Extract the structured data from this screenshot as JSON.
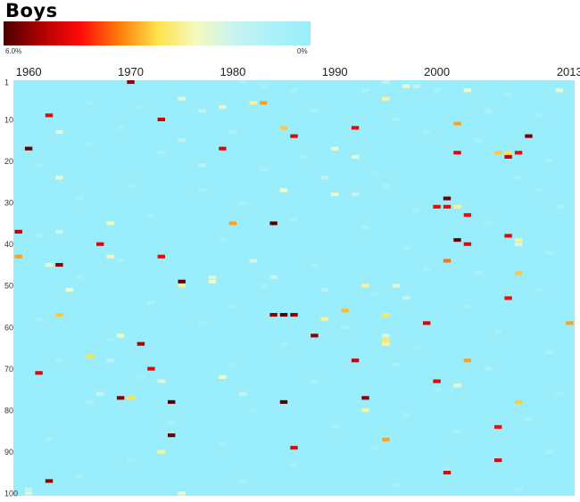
{
  "chart_data": {
    "type": "heatmap",
    "title": "Boys",
    "legend": {
      "min_label": "6.0%",
      "max_label": "0%",
      "colors": [
        "#4a0000",
        "#b30000",
        "#ff0a0a",
        "#ff7f0a",
        "#ffe24a",
        "#f4fac0",
        "#c9f3f0",
        "#aaf1fa",
        "#9aeefc"
      ]
    },
    "x_ticks": [
      "1960",
      "1970",
      "1980",
      "1990",
      "2000",
      "2013"
    ],
    "y_ticks": [
      "1",
      "10",
      "20",
      "30",
      "40",
      "50",
      "60",
      "70",
      "80",
      "90",
      "100"
    ],
    "x_range": [
      1959,
      2013
    ],
    "y_range": [
      1,
      100
    ],
    "background_color": "#9aeefc",
    "cells": [
      [
        1970,
        1,
        5.5
      ],
      [
        1981,
        1,
        0.8
      ],
      [
        1995,
        1,
        1.2
      ],
      [
        1997,
        2,
        2.0
      ],
      [
        1998,
        2,
        1.5
      ],
      [
        2003,
        3,
        2.2
      ],
      [
        2012,
        3,
        2.0
      ],
      [
        1975,
        5,
        2.0
      ],
      [
        1995,
        5,
        2.5
      ],
      [
        1982,
        6,
        2.5
      ],
      [
        1983,
        6,
        3.5
      ],
      [
        1979,
        7,
        2.0
      ],
      [
        1977,
        8,
        1.3
      ],
      [
        1962,
        9,
        4.8
      ],
      [
        1973,
        10,
        5.0
      ],
      [
        2002,
        11,
        3.5
      ],
      [
        1985,
        12,
        3.2
      ],
      [
        1992,
        12,
        4.7
      ],
      [
        1963,
        13,
        1.8
      ],
      [
        1986,
        14,
        4.8
      ],
      [
        2009,
        14,
        5.6
      ],
      [
        1975,
        15,
        1.3
      ],
      [
        1960,
        17,
        5.8
      ],
      [
        1979,
        17,
        4.8
      ],
      [
        1990,
        17,
        2.0
      ],
      [
        2002,
        18,
        4.8
      ],
      [
        2006,
        18,
        3.2
      ],
      [
        2007,
        18,
        3.0
      ],
      [
        2008,
        18,
        4.7
      ],
      [
        2007,
        19,
        5.0
      ],
      [
        1992,
        19,
        2.0
      ],
      [
        1977,
        21,
        1.2
      ],
      [
        1963,
        24,
        2.0
      ],
      [
        1989,
        24,
        1.3
      ],
      [
        1985,
        27,
        2.2
      ],
      [
        1990,
        28,
        2.0
      ],
      [
        1992,
        28,
        1.5
      ],
      [
        2001,
        29,
        5.8
      ],
      [
        2000,
        31,
        4.7
      ],
      [
        2001,
        31,
        4.7
      ],
      [
        2002,
        31,
        2.5
      ],
      [
        2003,
        33,
        4.6
      ],
      [
        1968,
        35,
        2.2
      ],
      [
        1980,
        35,
        3.5
      ],
      [
        1984,
        35,
        5.9
      ],
      [
        1959,
        37,
        5.2
      ],
      [
        1963,
        37,
        1.6
      ],
      [
        2007,
        38,
        4.8
      ],
      [
        2002,
        39,
        5.8
      ],
      [
        2008,
        39,
        2.5
      ],
      [
        2008,
        40,
        1.8
      ],
      [
        1967,
        40,
        4.8
      ],
      [
        2003,
        40,
        4.8
      ],
      [
        1959,
        43,
        3.5
      ],
      [
        1968,
        43,
        2.3
      ],
      [
        1973,
        43,
        4.7
      ],
      [
        2001,
        44,
        3.8
      ],
      [
        1962,
        45,
        2.0
      ],
      [
        1963,
        45,
        5.5
      ],
      [
        1982,
        44,
        1.7
      ],
      [
        2008,
        47,
        3.2
      ],
      [
        1978,
        48,
        1.8
      ],
      [
        1984,
        48,
        1.5
      ],
      [
        1975,
        49,
        5.8
      ],
      [
        1975,
        50,
        2.5
      ],
      [
        1978,
        49,
        2.2
      ],
      [
        1964,
        51,
        2.2
      ],
      [
        1989,
        51,
        1.2
      ],
      [
        1993,
        50,
        2.5
      ],
      [
        1996,
        50,
        1.8
      ],
      [
        1997,
        53,
        1.5
      ],
      [
        2007,
        53,
        4.6
      ],
      [
        1963,
        57,
        3.2
      ],
      [
        1984,
        57,
        5.5
      ],
      [
        1985,
        57,
        5.9
      ],
      [
        1986,
        57,
        5.5
      ],
      [
        1991,
        56,
        3.3
      ],
      [
        1995,
        57,
        2.8
      ],
      [
        1989,
        58,
        2.5
      ],
      [
        1999,
        59,
        4.9
      ],
      [
        2013,
        59,
        3.5
      ],
      [
        1969,
        62,
        2.2
      ],
      [
        1988,
        62,
        5.5
      ],
      [
        1995,
        62,
        1.8
      ],
      [
        1995,
        63,
        2.8
      ],
      [
        1971,
        64,
        5.3
      ],
      [
        1995,
        64,
        2.5
      ],
      [
        1966,
        67,
        3.0
      ],
      [
        1968,
        68,
        1.2
      ],
      [
        1992,
        68,
        5.0
      ],
      [
        2003,
        68,
        3.5
      ],
      [
        1972,
        70,
        4.8
      ],
      [
        1961,
        71,
        4.8
      ],
      [
        1973,
        73,
        1.8
      ],
      [
        1979,
        72,
        2.2
      ],
      [
        2000,
        73,
        4.8
      ],
      [
        2002,
        74,
        2.0
      ],
      [
        1981,
        76,
        1.5
      ],
      [
        1967,
        76,
        1.5
      ],
      [
        1969,
        77,
        5.5
      ],
      [
        1970,
        77,
        3.0
      ],
      [
        1993,
        77,
        5.5
      ],
      [
        1974,
        78,
        5.9
      ],
      [
        1985,
        78,
        5.9
      ],
      [
        2008,
        78,
        3.2
      ],
      [
        1993,
        80,
        2.5
      ],
      [
        2006,
        84,
        4.6
      ],
      [
        1974,
        86,
        5.8
      ],
      [
        1995,
        87,
        3.5
      ],
      [
        1986,
        89,
        4.8
      ],
      [
        1973,
        90,
        2.5
      ],
      [
        2006,
        92,
        4.8
      ],
      [
        2001,
        95,
        4.8
      ],
      [
        1962,
        97,
        5.5
      ],
      [
        1975,
        100,
        2.0
      ],
      [
        1960,
        99,
        1.3
      ],
      [
        1960,
        100,
        1.7
      ],
      [
        1983,
        2,
        0.6
      ],
      [
        1986,
        3,
        0.7
      ],
      [
        1993,
        3,
        0.8
      ],
      [
        2000,
        3,
        0.7
      ],
      [
        2007,
        4,
        0.6
      ],
      [
        1966,
        6,
        0.6
      ],
      [
        1971,
        7,
        0.5
      ],
      [
        1988,
        8,
        0.7
      ],
      [
        2005,
        8,
        0.8
      ],
      [
        2010,
        9,
        0.6
      ],
      [
        1996,
        10,
        0.7
      ],
      [
        1969,
        12,
        0.6
      ],
      [
        1980,
        13,
        0.8
      ],
      [
        1999,
        13,
        0.5
      ],
      [
        2004,
        15,
        0.7
      ],
      [
        1966,
        16,
        0.6
      ],
      [
        1973,
        18,
        0.8
      ],
      [
        1987,
        19,
        0.7
      ],
      [
        2011,
        20,
        0.6
      ],
      [
        1961,
        21,
        0.5
      ],
      [
        1983,
        22,
        0.8
      ],
      [
        1994,
        23,
        0.6
      ],
      [
        2008,
        24,
        0.7
      ],
      [
        1970,
        26,
        0.6
      ],
      [
        1977,
        27,
        0.7
      ],
      [
        1995,
        26,
        0.8
      ],
      [
        2010,
        27,
        0.6
      ],
      [
        1965,
        29,
        0.7
      ],
      [
        1981,
        30,
        0.6
      ],
      [
        1998,
        32,
        0.7
      ],
      [
        2012,
        31,
        0.8
      ],
      [
        1972,
        33,
        0.6
      ],
      [
        1986,
        34,
        0.7
      ],
      [
        1993,
        36,
        0.8
      ],
      [
        2005,
        35,
        0.6
      ],
      [
        1961,
        38,
        0.7
      ],
      [
        1979,
        39,
        0.6
      ],
      [
        1997,
        41,
        0.7
      ],
      [
        2011,
        42,
        0.8
      ],
      [
        1969,
        44,
        0.6
      ],
      [
        1988,
        45,
        0.7
      ],
      [
        1999,
        46,
        0.6
      ],
      [
        2004,
        47,
        0.8
      ],
      [
        1965,
        48,
        0.7
      ],
      [
        1983,
        50,
        0.6
      ],
      [
        1994,
        52,
        0.7
      ],
      [
        2010,
        51,
        0.6
      ],
      [
        1972,
        54,
        0.8
      ],
      [
        1980,
        55,
        0.7
      ],
      [
        2003,
        55,
        0.6
      ],
      [
        1961,
        58,
        0.7
      ],
      [
        1977,
        59,
        0.6
      ],
      [
        1991,
        60,
        0.8
      ],
      [
        2006,
        61,
        0.7
      ],
      [
        1968,
        63,
        0.6
      ],
      [
        1985,
        64,
        0.7
      ],
      [
        1998,
        65,
        0.6
      ],
      [
        2011,
        66,
        0.8
      ],
      [
        1963,
        68,
        0.7
      ],
      [
        1980,
        69,
        0.6
      ],
      [
        1996,
        69,
        0.7
      ],
      [
        2005,
        70,
        0.8
      ],
      [
        1971,
        72,
        0.6
      ],
      [
        1988,
        73,
        0.7
      ],
      [
        2000,
        75,
        0.6
      ],
      [
        2012,
        76,
        0.7
      ],
      [
        1966,
        78,
        0.8
      ],
      [
        1982,
        80,
        0.6
      ],
      [
        1997,
        81,
        0.7
      ],
      [
        2009,
        82,
        0.6
      ],
      [
        1974,
        83,
        0.7
      ],
      [
        1990,
        84,
        0.8
      ],
      [
        2002,
        85,
        0.6
      ],
      [
        1962,
        87,
        0.7
      ],
      [
        1979,
        88,
        0.6
      ],
      [
        1994,
        89,
        0.7
      ],
      [
        2011,
        90,
        0.8
      ],
      [
        1970,
        92,
        0.6
      ],
      [
        1986,
        93,
        0.7
      ],
      [
        2001,
        94,
        0.6
      ],
      [
        1965,
        96,
        0.7
      ],
      [
        1981,
        97,
        0.8
      ],
      [
        1996,
        98,
        0.6
      ],
      [
        2008,
        99,
        0.7
      ]
    ]
  }
}
